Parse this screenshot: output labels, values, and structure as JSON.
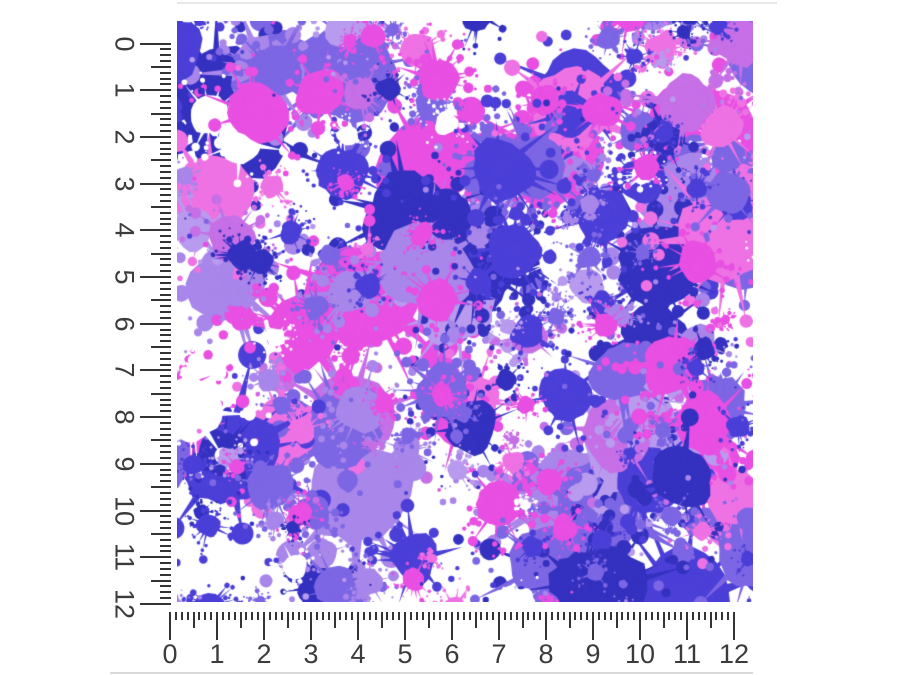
{
  "swatch": {
    "background_color": "#ffffff",
    "palette": [
      {
        "name": "magenta",
        "hex": "#e84fe2",
        "weight": 0.21
      },
      {
        "name": "light-magenta",
        "hex": "#ee72e4",
        "weight": 0.05
      },
      {
        "name": "royal-blue",
        "hex": "#4b3fd8",
        "weight": 0.12
      },
      {
        "name": "deep-blue",
        "hex": "#3431c0",
        "weight": 0.11
      },
      {
        "name": "periwinkle",
        "hex": "#7d66e4",
        "weight": 0.2
      },
      {
        "name": "lavender",
        "hex": "#a886ea",
        "weight": 0.14
      },
      {
        "name": "orchid",
        "hex": "#c66fe6",
        "weight": 0.07
      },
      {
        "name": "light-lavender",
        "hex": "#b89aee",
        "weight": 0.05
      }
    ]
  },
  "left_ruler": {
    "unit_labels": [
      "0",
      "1",
      "2",
      "3",
      "4",
      "5",
      "6",
      "7",
      "8",
      "9",
      "10",
      "11",
      "12"
    ],
    "subdivisions_per_unit": 8
  },
  "bottom_ruler": {
    "unit_labels": [
      "0",
      "1",
      "2",
      "3",
      "4",
      "5",
      "6",
      "7",
      "8",
      "9",
      "10",
      "11",
      "12"
    ],
    "subdivisions_per_unit": 8
  },
  "colors": {
    "tick": "#343434",
    "label": "#3b3b3b",
    "top_divider": "#e8e8e8",
    "bottom_divider": "#d9d9d9"
  }
}
